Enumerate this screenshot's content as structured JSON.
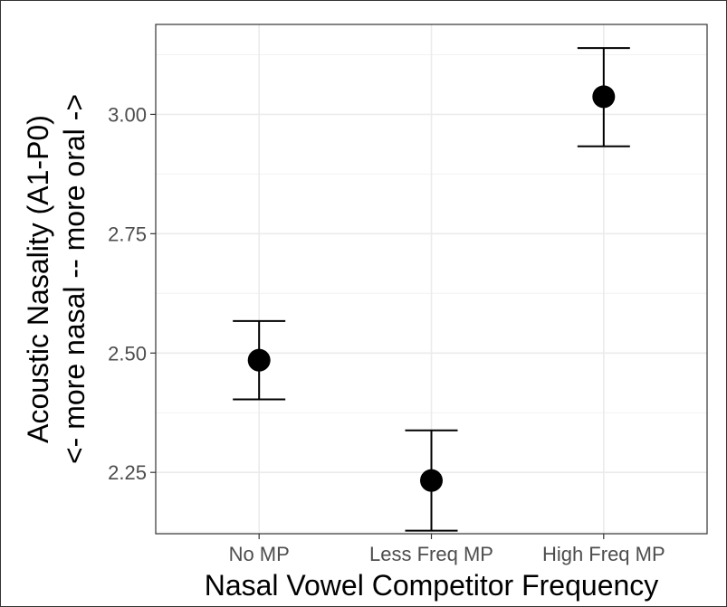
{
  "chart_data": {
    "type": "scatter",
    "title": "",
    "xlabel": "Nasal Vowel Competitor Frequency",
    "ylabel_lines": [
      "Acoustic Nasality (A1-P0)",
      "<- more nasal -- more oral ->"
    ],
    "categories": [
      "No MP",
      "Less Freq MP",
      "High Freq MP"
    ],
    "series": [
      {
        "values": [
          2.485,
          2.233,
          3.037
        ],
        "error_low": [
          2.403,
          2.128,
          2.933
        ],
        "error_high": [
          2.567,
          2.338,
          3.139
        ]
      }
    ],
    "yticks": [
      2.25,
      2.5,
      2.75,
      3.0
    ],
    "ytick_labels": [
      "2.25",
      "2.50",
      "2.75",
      "3.00"
    ],
    "ylim": [
      2.1215,
      3.1884
    ],
    "grid": true,
    "colors": {
      "point": "#000000",
      "grid_major": "#ebebeb",
      "grid_minor": "#f2f2f2",
      "panel_border": "#333333",
      "tick_text": "#4d4d4d"
    }
  }
}
